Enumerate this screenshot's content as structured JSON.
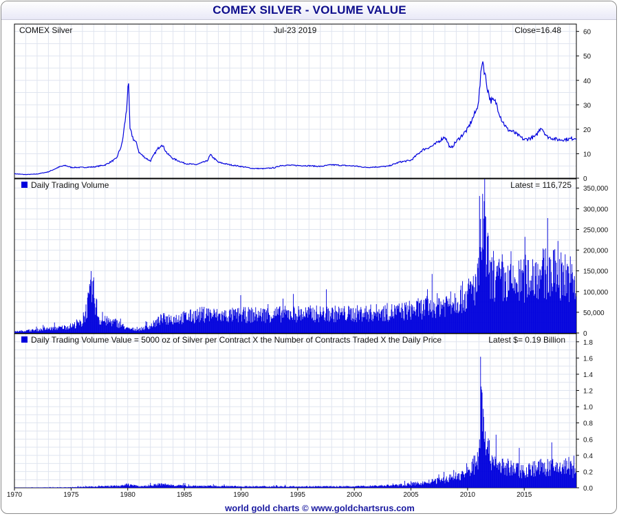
{
  "header": {
    "title": "COMEX SILVER - VOLUME VALUE"
  },
  "footer": {
    "credit": "world gold charts © www.goldchartsrus.com"
  },
  "colors": {
    "series": "#0000dd",
    "grid": "#dfe4ef",
    "axis": "#000000",
    "title": "#0d0d8c"
  },
  "chart_data": [
    {
      "type": "line",
      "label_left": "COMEX Silver",
      "label_center": "Jul-23  2019",
      "label_right": "Close=16.48",
      "ylim": [
        0,
        63
      ],
      "yticks": [
        "0",
        "10",
        "20",
        "30",
        "40",
        "50",
        "60"
      ],
      "xlim": [
        1970,
        2019.6
      ],
      "series": [
        {
          "x": [
            1970,
            1971,
            1972,
            1973,
            1974,
            1974.5,
            1975,
            1976,
            1977,
            1978,
            1979,
            1979.5,
            1979.9,
            1980.05,
            1980.2,
            1980.5,
            1980.8,
            1981,
            1981.5,
            1982,
            1982.5,
            1983,
            1983.5,
            1984,
            1985,
            1986,
            1987,
            1987.3,
            1988,
            1989,
            1990,
            1991,
            1992,
            1993,
            1993.5,
            1994,
            1995,
            1996,
            1997,
            1998,
            1999,
            2000,
            2001,
            2002,
            2003,
            2004,
            2005,
            2006,
            2007,
            2008,
            2008.5,
            2009,
            2010,
            2010.8,
            2011,
            2011.3,
            2011.7,
            2012,
            2012.5,
            2013,
            2013.5,
            2014,
            2015,
            2016,
            2016.5,
            2017,
            2018,
            2019,
            2019.55
          ],
          "values": [
            1.8,
            1.5,
            1.7,
            2.6,
            4.7,
            5.2,
            4.4,
            4.4,
            4.6,
            5.4,
            8,
            14,
            28,
            41,
            20,
            16,
            14,
            10.5,
            8.5,
            7,
            11,
            14,
            10,
            8,
            6.1,
            5.5,
            7,
            9.5,
            6.5,
            5.5,
            4.8,
            4,
            3.9,
            4.3,
            5.2,
            5.3,
            5.2,
            5.1,
            4.8,
            5.5,
            5.2,
            5,
            4.4,
            4.6,
            4.9,
            6.6,
            7.3,
            11.5,
            13.4,
            17,
            12,
            15,
            20,
            28,
            33,
            49,
            38,
            32,
            31,
            24,
            20,
            19,
            15.7,
            17,
            21,
            17,
            15.7,
            16,
            16.48
          ]
        }
      ]
    },
    {
      "type": "bar",
      "label_left": "Daily Trading Volume",
      "label_right": "Latest = 116,725",
      "ylim": [
        0,
        372000
      ],
      "yticks": [
        "0",
        "50,000",
        "100,000",
        "150,000",
        "200,000",
        "250,000",
        "300,000",
        "350,000"
      ],
      "xlim": [
        1970,
        2019.6
      ],
      "series": [
        {
          "x": [
            1970,
            1972,
            1974,
            1975,
            1976,
            1976.9,
            1977.5,
            1978,
            1979,
            1980,
            1981,
            1982,
            1983,
            1985,
            1987,
            1988,
            1990,
            1995,
            2000,
            2004,
            2006,
            2008,
            2010,
            2011,
            2011.3,
            2012,
            2014,
            2016,
            2018,
            2019,
            2019.55
          ],
          "values": [
            4000,
            9000,
            15000,
            20000,
            30000,
            128000,
            38000,
            35000,
            30000,
            12000,
            10000,
            20000,
            40000,
            45000,
            56000,
            50000,
            52000,
            56000,
            56000,
            62000,
            72000,
            85000,
            110000,
            150000,
            320000,
            160000,
            140000,
            175000,
            170000,
            165000,
            116725
          ]
        }
      ]
    },
    {
      "type": "bar",
      "label_left": "Daily Trading Volume Value = 5000 oz of Silver per Contract X the Number of Contracts Traded X the Daily Price",
      "label_right": "Latest $= 0.19 Billion",
      "ylim": [
        0,
        1.9
      ],
      "yticks": [
        "0.0",
        "0.2",
        "0.4",
        "0.6",
        "0.8",
        "1.0",
        "1.2",
        "1.4",
        "1.6",
        "1.8"
      ],
      "xlim": [
        1970,
        2019.6
      ],
      "xticks": [
        "1970",
        "1975",
        "1980",
        "1985",
        "1990",
        "1995",
        "2000",
        "2005",
        "2010",
        "2015"
      ],
      "series": [
        {
          "x": [
            1970,
            1975,
            1979.5,
            1980,
            1981,
            1983,
            1985,
            1990,
            1995,
            2000,
            2004,
            2006,
            2008,
            2010,
            2011,
            2011.25,
            2011.7,
            2012,
            2013,
            2015,
            2016,
            2018,
            2019,
            2019.55
          ],
          "values": [
            0.002,
            0.008,
            0.03,
            0.05,
            0.02,
            0.05,
            0.03,
            0.02,
            0.02,
            0.02,
            0.04,
            0.07,
            0.12,
            0.22,
            0.45,
            1.48,
            0.6,
            0.45,
            0.32,
            0.25,
            0.3,
            0.3,
            0.33,
            0.19
          ]
        }
      ]
    }
  ]
}
